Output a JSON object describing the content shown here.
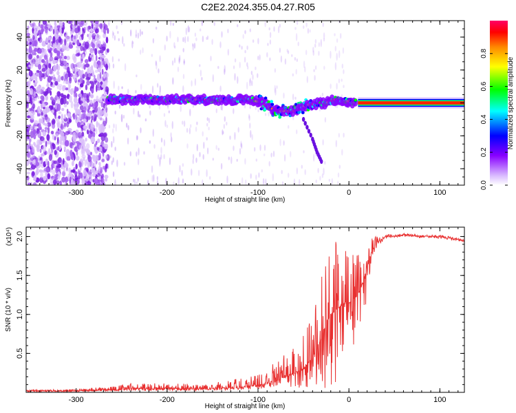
{
  "title": "C2E2.2024.355.04.27.R05",
  "chart_data": [
    {
      "type": "heatmap",
      "xlabel": "Height of straight line (km)",
      "ylabel": "Frequency (Hz)",
      "xlim": [
        -355,
        127
      ],
      "ylim": [
        -50,
        50
      ],
      "x_ticks": [
        -300,
        -200,
        -100,
        0,
        100
      ],
      "y_ticks": [
        -40,
        -20,
        0,
        20,
        40
      ],
      "grid": false,
      "colorbar": {
        "label": "Normalized spectral amplitude",
        "range": [
          0,
          1
        ],
        "ticks": [
          0.0,
          0.2,
          0.4,
          0.6,
          0.8
        ],
        "colormap": [
          "#ffffff",
          "#8800ff",
          "#0000ff",
          "#00ffff",
          "#00ff00",
          "#ffff00",
          "#ff8800",
          "#ff0000",
          "#ff0066"
        ]
      },
      "features": {
        "noise_region_x": [
          -355,
          -265
        ],
        "dominant_tone": [
          {
            "x": -265,
            "y": 2
          },
          {
            "x": -200,
            "y": 2
          },
          {
            "x": -150,
            "y": 2
          },
          {
            "x": -110,
            "y": 2
          },
          {
            "x": -95,
            "y": 0
          },
          {
            "x": -80,
            "y": -5
          },
          {
            "x": -60,
            "y": -5
          },
          {
            "x": -45,
            "y": -1
          },
          {
            "x": -25,
            "y": 0
          },
          {
            "x": -15,
            "y": 2
          },
          {
            "x": 0,
            "y": 1
          },
          {
            "x": 10,
            "y": 0
          },
          {
            "x": 127,
            "y": 0
          }
        ],
        "descending_branch": [
          {
            "x": -50,
            "y": -10
          },
          {
            "x": -40,
            "y": -22
          },
          {
            "x": -35,
            "y": -30
          },
          {
            "x": -29,
            "y": -37
          }
        ]
      }
    },
    {
      "type": "line",
      "xlabel": "Height of straight line (km)",
      "ylabel": "SNR (10 * v/v)",
      "y_multiplier": "(x10⁴)",
      "xlim": [
        -355,
        127
      ],
      "ylim": [
        0,
        2.12
      ],
      "x_ticks": [
        -300,
        -200,
        -100,
        0,
        100
      ],
      "y_ticks": [
        0.5,
        1.0,
        1.5,
        2.0
      ],
      "y_tick_labels": [
        "0.5",
        "1.0",
        "1.5",
        "2.0"
      ],
      "grid": false,
      "color": "#e83030",
      "series": [
        {
          "x": [
            -355,
            -300,
            -260,
            -240,
            -200,
            -160,
            -120,
            -100,
            -80,
            -60,
            -50,
            -40,
            -30,
            -25,
            -20,
            -15,
            -10,
            -5,
            0,
            5,
            10,
            15,
            20,
            25,
            30,
            40,
            50,
            60,
            80,
            100,
            110,
            120,
            127
          ],
          "y_base": [
            0.02,
            0.02,
            0.03,
            0.05,
            0.05,
            0.05,
            0.06,
            0.09,
            0.15,
            0.25,
            0.3,
            0.45,
            0.7,
            0.9,
            1.0,
            1.05,
            1.1,
            1.15,
            1.15,
            1.2,
            1.25,
            1.4,
            1.6,
            1.8,
            1.9,
            2.0,
            2.01,
            2.02,
            2.0,
            2.0,
            1.98,
            1.96,
            1.95
          ],
          "y_peak": [
            0.03,
            0.04,
            0.08,
            0.12,
            0.12,
            0.1,
            0.18,
            0.22,
            0.4,
            0.6,
            0.8,
            1.0,
            1.6,
            1.7,
            1.8,
            2.12,
            1.7,
            1.8,
            1.9,
            1.75,
            1.9,
            1.95,
            2.0,
            2.0,
            2.0,
            2.03,
            2.04,
            2.04,
            2.02,
            2.02,
            2.0,
            1.98,
            1.96
          ],
          "y_trough": [
            0.01,
            0.01,
            0.02,
            0.02,
            0.02,
            0.02,
            0.03,
            0.04,
            0.07,
            0.05,
            0.05,
            0.08,
            0.05,
            0.05,
            0.05,
            0.02,
            0.4,
            0.5,
            0.55,
            0.6,
            0.8,
            0.7,
            1.3,
            1.7,
            1.85,
            1.97,
            1.99,
            2.0,
            1.98,
            1.97,
            1.96,
            1.94,
            1.93
          ]
        }
      ]
    }
  ]
}
